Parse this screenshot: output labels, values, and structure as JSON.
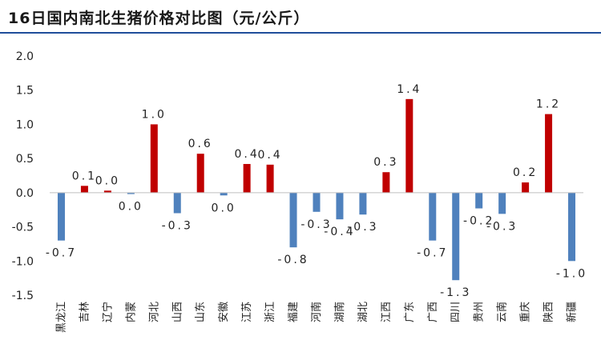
{
  "chart_data": {
    "type": "bar",
    "title": "16日国内南北生猪价格对比图（元/公斤）",
    "xlabel": "",
    "ylabel": "",
    "ylim": [
      -1.5,
      2.0
    ],
    "yticks": [
      "2.0",
      "1.5",
      "1.0",
      "0.5",
      "0.0",
      "-0.5",
      "-1.0",
      "-1.5"
    ],
    "ytick_values": [
      2.0,
      1.5,
      1.0,
      0.5,
      0.0,
      -0.5,
      -1.0,
      -1.5
    ],
    "grid": false,
    "legend": "none",
    "colors": {
      "positive": "#c00000",
      "negative": "#4f81bd"
    },
    "categories": [
      "黑龙江",
      "吉林",
      "辽宁",
      "内蒙",
      "河北",
      "山西",
      "山东",
      "安徽",
      "江苏",
      "浙江",
      "福建",
      "河南",
      "湖南",
      "湖北",
      "江西",
      "广东",
      "广西",
      "四川",
      "贵州",
      "云南",
      "重庆",
      "陕西",
      "新疆"
    ],
    "values": [
      -0.7,
      0.1,
      0.03,
      -0.02,
      1.0,
      -0.3,
      0.57,
      -0.04,
      0.42,
      0.41,
      -0.8,
      -0.28,
      -0.39,
      -0.32,
      0.3,
      1.37,
      -0.7,
      -1.28,
      -0.23,
      -0.31,
      0.15,
      1.15,
      -1.0
    ],
    "labels": [
      "-0.7",
      "0.1",
      "0.0",
      "0.0",
      "1.0",
      "-0.3",
      "0.6",
      "0.0",
      "0.4",
      "0.4",
      "-0.8",
      "-0.3",
      "-0.4",
      "-0.3",
      "0.3",
      "1.4",
      "-0.7",
      "-1.3",
      "-0.2",
      "-0.3",
      "0.2",
      "1.2",
      "-1.0"
    ]
  }
}
